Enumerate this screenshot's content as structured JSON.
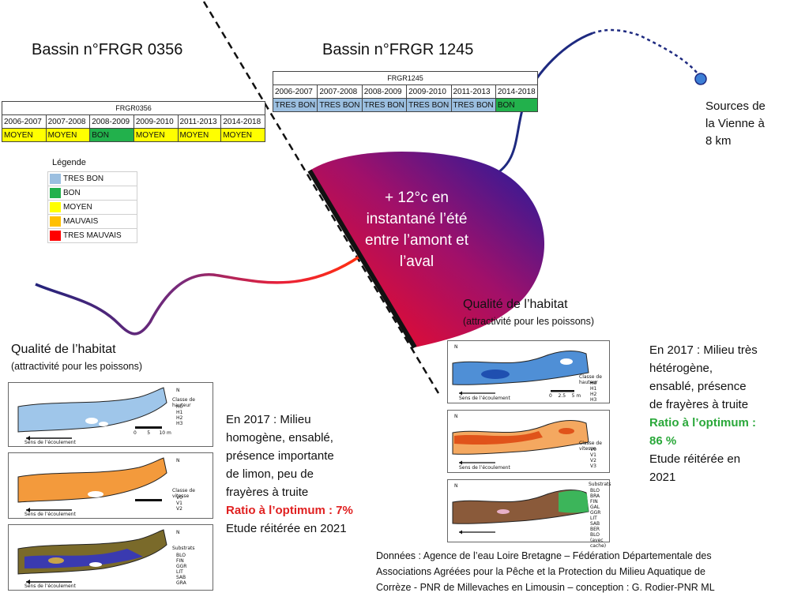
{
  "basin_left": {
    "title": "Bassin n°FRGR 0356",
    "table_code": "FRGR0356",
    "periods": [
      "2006-2007",
      "2007-2008",
      "2008-2009",
      "2009-2010",
      "2011-2013",
      "2014-2018"
    ],
    "ratings": [
      "MOYEN",
      "MOYEN",
      "BON",
      "MOYEN",
      "MOYEN",
      "MOYEN"
    ]
  },
  "basin_right": {
    "title": "Bassin n°FRGR 1245",
    "table_code": "FRGR1245",
    "periods": [
      "2006-2007",
      "2007-2008",
      "2008-2009",
      "2009-2010",
      "2011-2013",
      "2014-2018"
    ],
    "ratings": [
      "TRES BON",
      "TRES BON",
      "TRES BON",
      "TRES BON",
      "TRES BON",
      "BON"
    ]
  },
  "rating_colors": {
    "TRES BON": "#9bbfe0",
    "BON": "#22b14c",
    "MOYEN": "#ffff00",
    "MAUVAIS": "#ffc000",
    "TRES MAUVAIS": "#ff0000"
  },
  "legend": {
    "title": "Légende",
    "items": [
      {
        "label": "TRES BON",
        "color": "#9bbfe0"
      },
      {
        "label": "BON",
        "color": "#22b14c"
      },
      {
        "label": "MOYEN",
        "color": "#ffff00"
      },
      {
        "label": "MAUVAIS",
        "color": "#ffc000"
      },
      {
        "label": "TRES MAUVAIS",
        "color": "#ff0000"
      }
    ]
  },
  "sources": {
    "line1": "Sources de",
    "line2": "la Vienne à",
    "line3": "8 km"
  },
  "temperature": {
    "line1": "+ 12°c en",
    "line2": "instantané l’été",
    "line3": "entre l’amont et",
    "line4": "l’aval"
  },
  "habitat_left": {
    "title": "Qualité de l’habitat",
    "subtitle": "(attractivité pour les poissons)",
    "desc_lines": [
      "En 2017 : Milieu",
      "homogène, ensablé,",
      "présence importante",
      "de limon, peu de",
      "frayères à truite"
    ],
    "ratio": "Ratio à l’optimum : 7%",
    "repeat": "Etude réitérée en 2021"
  },
  "habitat_right": {
    "title": "Qualité de l’habitat",
    "subtitle": "(attractivité pour les poissons)",
    "desc_lines": [
      "En 2017 : Milieu très",
      "hétérogène,",
      "ensablé, présence",
      "de frayères à truite"
    ],
    "ratio_line1": "Ratio à l’optimum :",
    "ratio_line2": "86 %",
    "repeat_line1": "Etude réitérée en",
    "repeat_line2": "2021"
  },
  "map_labels": {
    "flow": "Sens de l’écoulement",
    "height_class": "Classe de hauteur",
    "height_items": [
      "H0",
      "H1",
      "H2",
      "H3"
    ],
    "speed_class": "Classe de vitesse",
    "speed_items": [
      "V0",
      "V1",
      "V2"
    ],
    "speed_items_right": [
      "V0",
      "V1",
      "V2",
      "V3"
    ],
    "substrate_class": "Substrats",
    "substrate_items": [
      "BLO",
      "FIN",
      "GGR",
      "LIT",
      "SAB",
      "GRA"
    ],
    "substrate_items_right": [
      "BLO",
      "BRA",
      "FIN",
      "GAL",
      "GGR",
      "LIT",
      "SAB",
      "BER",
      "BLO (avec cache)"
    ],
    "scale_left": [
      "0",
      "5",
      "10 m"
    ],
    "scale_right": [
      "0",
      "2.5",
      "5 m"
    ],
    "north": "N"
  },
  "credits": {
    "line1": "Données : Agence de l’eau Loire Bretagne – Fédération Départementale des",
    "line2": "Associations Agréées pour la Pêche et la Protection du Milieu Aquatique de",
    "line3": "Corrèze - PNR de Millevaches en Limousin – conception : G. Rodier-PNR ML"
  }
}
